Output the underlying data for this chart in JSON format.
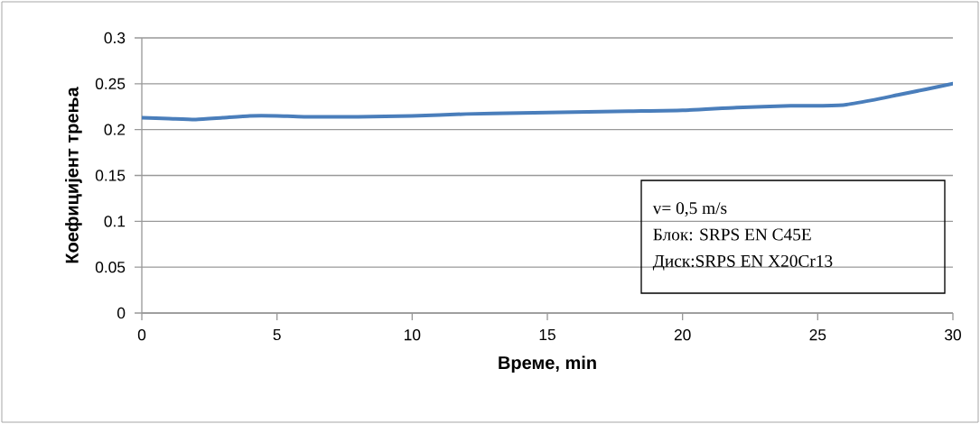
{
  "chart_data": {
    "type": "line",
    "xlabel": "Време, min",
    "ylabel": "Коефицијент трења",
    "x": [
      0,
      1,
      2,
      3,
      4,
      5,
      6,
      8,
      10,
      12,
      14,
      16,
      18,
      20,
      22,
      24,
      25,
      26,
      27,
      28,
      29,
      30
    ],
    "series": [
      {
        "color": "#4a7ebb",
        "values": [
          0.213,
          0.212,
          0.211,
          0.213,
          0.215,
          0.215,
          0.214,
          0.214,
          0.215,
          0.217,
          0.218,
          0.219,
          0.22,
          0.221,
          0.224,
          0.226,
          0.226,
          0.227,
          0.232,
          0.238,
          0.244,
          0.25
        ]
      }
    ],
    "xlim": [
      0,
      30
    ],
    "xticks": [
      0,
      5,
      10,
      15,
      20,
      25,
      30
    ],
    "ylim": [
      0,
      0.3
    ],
    "yticks": [
      0,
      0.05,
      0.1,
      0.15,
      0.2,
      0.25,
      0.3
    ],
    "grid": "y",
    "marker": "none",
    "line_style": "solid",
    "annotations": [
      "v= 0,5 m/s",
      "Блок: SRPS EN C45E",
      "Диск:SRPS EN X20Cr13"
    ]
  }
}
